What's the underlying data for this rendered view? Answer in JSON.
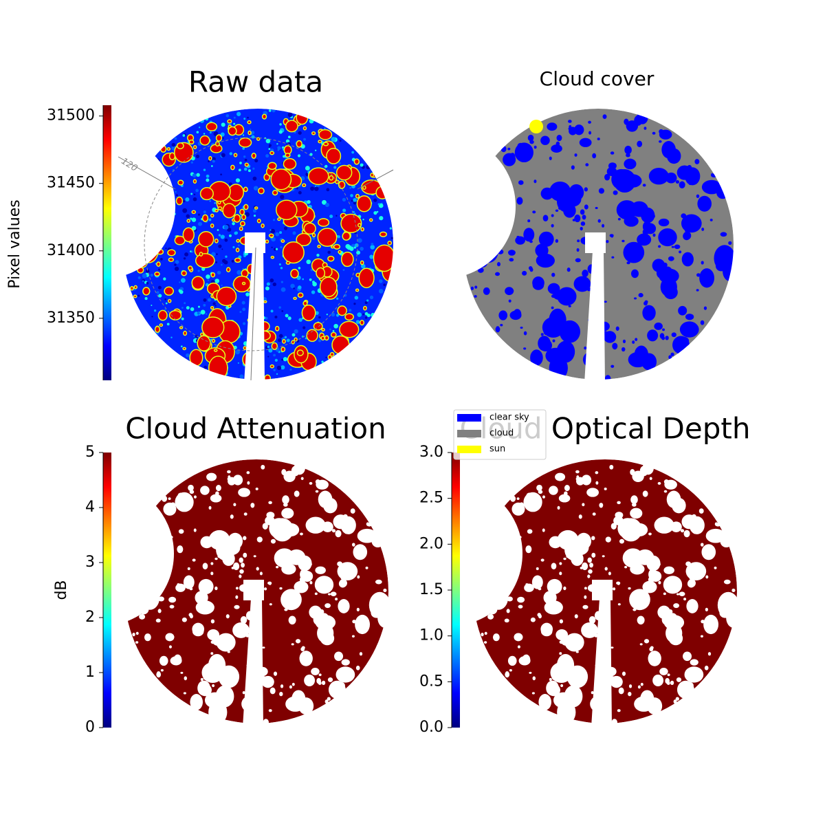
{
  "chart_data": [
    {
      "type": "image",
      "title": "Raw data",
      "colormap": "jet",
      "colorbar": {
        "label": "Pixel values",
        "lim": [
          31304,
          31508
        ],
        "ticks": [
          31350,
          31400,
          31450,
          31500
        ]
      },
      "annotations": [
        "120"
      ]
    },
    {
      "type": "classification",
      "title": "Cloud cover",
      "series": [
        {
          "name": "clear sky",
          "color": "#0000ff"
        },
        {
          "name": "cloud",
          "color": "#808080"
        },
        {
          "name": "sun",
          "color": "#ffff00"
        }
      ]
    },
    {
      "type": "image",
      "title": "Cloud Attenuation",
      "colormap": "jet",
      "colorbar": {
        "label": "dB",
        "lim": [
          0,
          5
        ],
        "ticks": [
          0,
          1,
          2,
          3,
          4,
          5
        ]
      }
    },
    {
      "type": "image",
      "title": "Cloud Optical Depth",
      "colormap": "jet",
      "colorbar": {
        "lim": [
          0,
          3
        ],
        "ticks": [
          {
            "value": 0,
            "label": "0.0"
          },
          0.5,
          {
            "value": 1,
            "label": "1.0"
          },
          1.5,
          {
            "value": 2,
            "label": "2.0"
          },
          2.5,
          {
            "value": 3,
            "label": "3.0"
          }
        ]
      }
    }
  ]
}
